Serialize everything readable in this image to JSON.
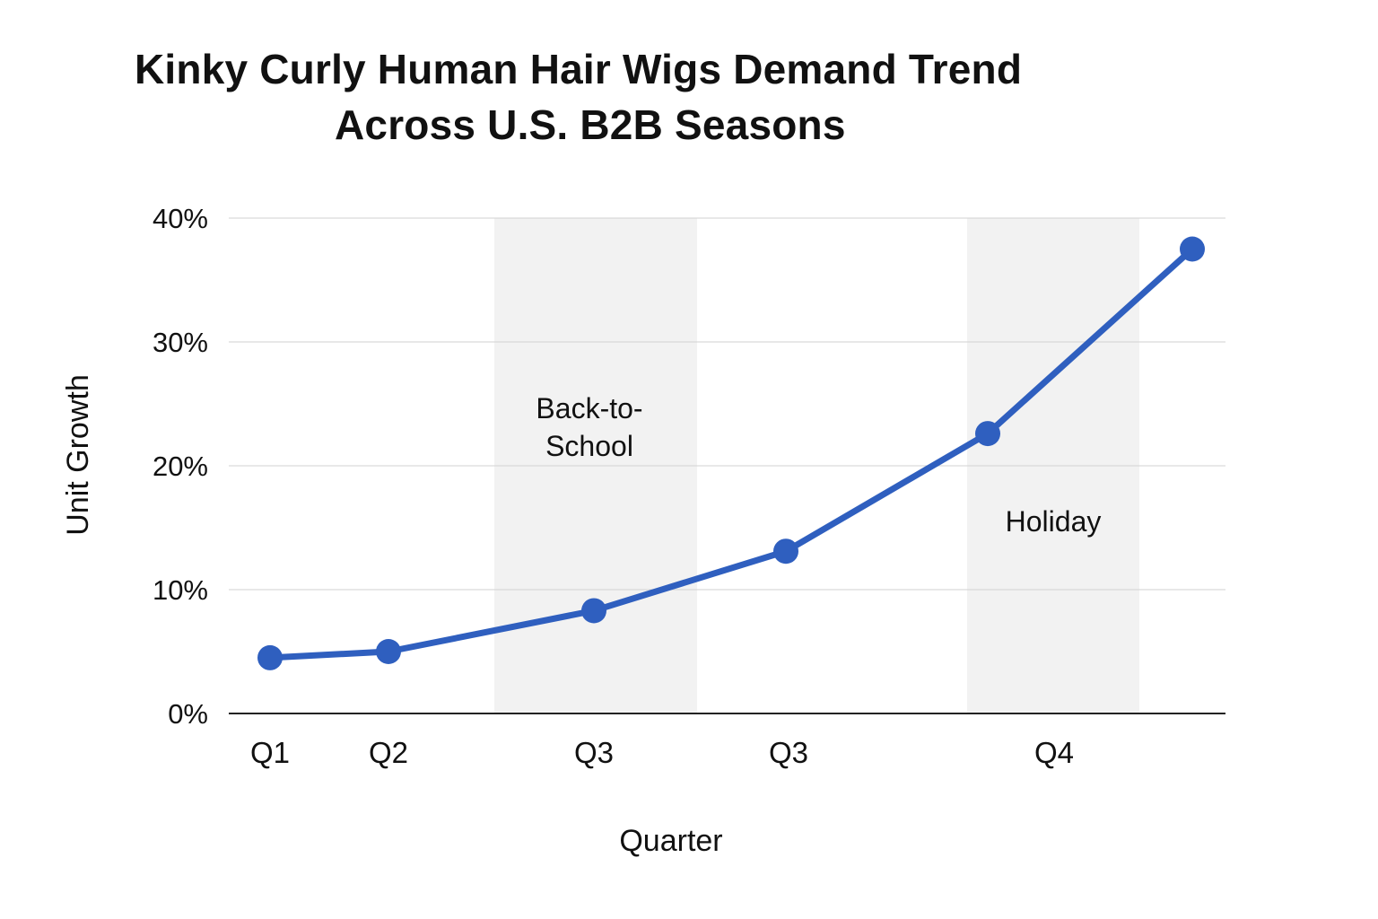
{
  "chart_data": {
    "type": "line",
    "title": [
      "Kinky Curly Human Hair Wigs Demand Trend",
      "Across U.S. B2B Seasons"
    ],
    "xlabel": "Quarter",
    "ylabel": "Unit Growth",
    "ylim": [
      0,
      40
    ],
    "yticks": [
      "0%",
      "10%",
      "20%",
      "30%",
      "40%"
    ],
    "ytick_values": [
      0,
      10,
      20,
      30,
      40
    ],
    "xtick_labels": [
      "Q1",
      "Q2",
      "Q3",
      "Q3",
      "Q4"
    ],
    "grid": true,
    "line_color": "#2f5fbf",
    "band_color": "#f2f2f2",
    "series": [
      {
        "values": [
          4.5,
          5.0,
          8.3,
          13.1,
          22.6,
          37.5
        ]
      }
    ],
    "bands": [
      {
        "label_lines": [
          "Back-to-",
          "School"
        ]
      },
      {
        "label_lines": [
          "Holiday"
        ]
      }
    ]
  }
}
